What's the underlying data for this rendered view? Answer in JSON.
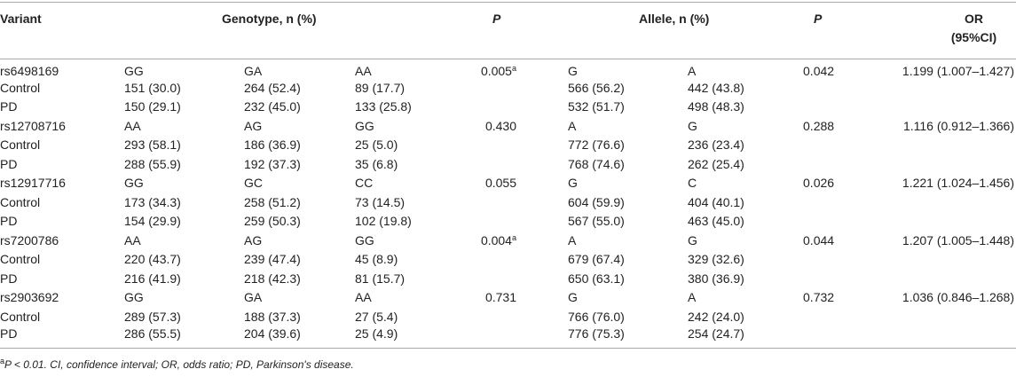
{
  "table": {
    "header": {
      "variant": "Variant",
      "genotype": "Genotype, n (%)",
      "p1": "P",
      "allele": "Allele, n (%)",
      "p2": "P",
      "or": [
        "OR",
        "(95%CI)"
      ]
    },
    "rows": [
      [
        "rs6498169",
        "GG",
        "GA",
        "AA",
        {
          "text": "0.005",
          "sup": "a"
        },
        "G",
        "A",
        "0.042",
        "1.199 (1.007–1.427)"
      ],
      [
        "Control",
        "151 (30.0)",
        "264 (52.4)",
        "89 (17.7)",
        null,
        "566 (56.2)",
        "442 (43.8)",
        null,
        null
      ],
      [
        "PD",
        "150 (29.1)",
        "232 (45.0)",
        "133 (25.8)",
        null,
        "532 (51.7)",
        "498 (48.3)",
        null,
        null
      ],
      [
        "rs12708716",
        "AA",
        "AG",
        "GG",
        "0.430",
        "A",
        "G",
        "0.288",
        "1.116 (0.912–1.366)"
      ],
      [
        "Control",
        "293 (58.1)",
        "186 (36.9)",
        "25 (5.0)",
        null,
        "772 (76.6)",
        "236 (23.4)",
        null,
        null
      ],
      [
        "PD",
        "288 (55.9)",
        "192 (37.3)",
        "35 (6.8)",
        null,
        "768 (74.6)",
        "262 (25.4)",
        null,
        null
      ],
      [
        "rs12917716",
        "GG",
        "GC",
        "CC",
        "0.055",
        "G",
        "C",
        "0.026",
        "1.221 (1.024–1.456)"
      ],
      [
        "Control",
        "173 (34.3)",
        "258 (51.2)",
        "73 (14.5)",
        null,
        "604 (59.9)",
        "404 (40.1)",
        null,
        null
      ],
      [
        "PD",
        "154 (29.9)",
        "259 (50.3)",
        "102 (19.8)",
        null,
        "567 (55.0)",
        "463 (45.0)",
        null,
        null
      ],
      [
        "rs7200786",
        "AA",
        "AG",
        "GG",
        {
          "text": "0.004",
          "sup": "a"
        },
        "A",
        "G",
        "0.044",
        "1.207 (1.005–1.448)"
      ],
      [
        "Control",
        "220 (43.7)",
        "239 (47.4)",
        "45 (8.9)",
        null,
        "679 (67.4)",
        "329 (32.6)",
        null,
        null
      ],
      [
        "PD",
        "216 (41.9)",
        "218 (42.3)",
        "81 (15.7)",
        null,
        "650 (63.1)",
        "380 (36.9)",
        null,
        null
      ],
      [
        "rs2903692",
        "GG",
        "GA",
        "AA",
        "0.731",
        "G",
        "A",
        "0.732",
        "1.036 (0.846–1.268)"
      ],
      [
        "Control",
        "289 (57.3)",
        "188 (37.3)",
        "27 (5.4)",
        null,
        "766 (76.0)",
        "242 (24.0)",
        null,
        null
      ],
      [
        "PD",
        "286 (55.5)",
        "204 (39.6)",
        "25 (4.9)",
        null,
        "776 (75.3)",
        "254 (24.7)",
        null,
        null
      ]
    ]
  },
  "footnote": {
    "sup": "a",
    "text": "P < 0.01. CI, confidence interval; OR, odds ratio; PD, Parkinson's disease."
  }
}
